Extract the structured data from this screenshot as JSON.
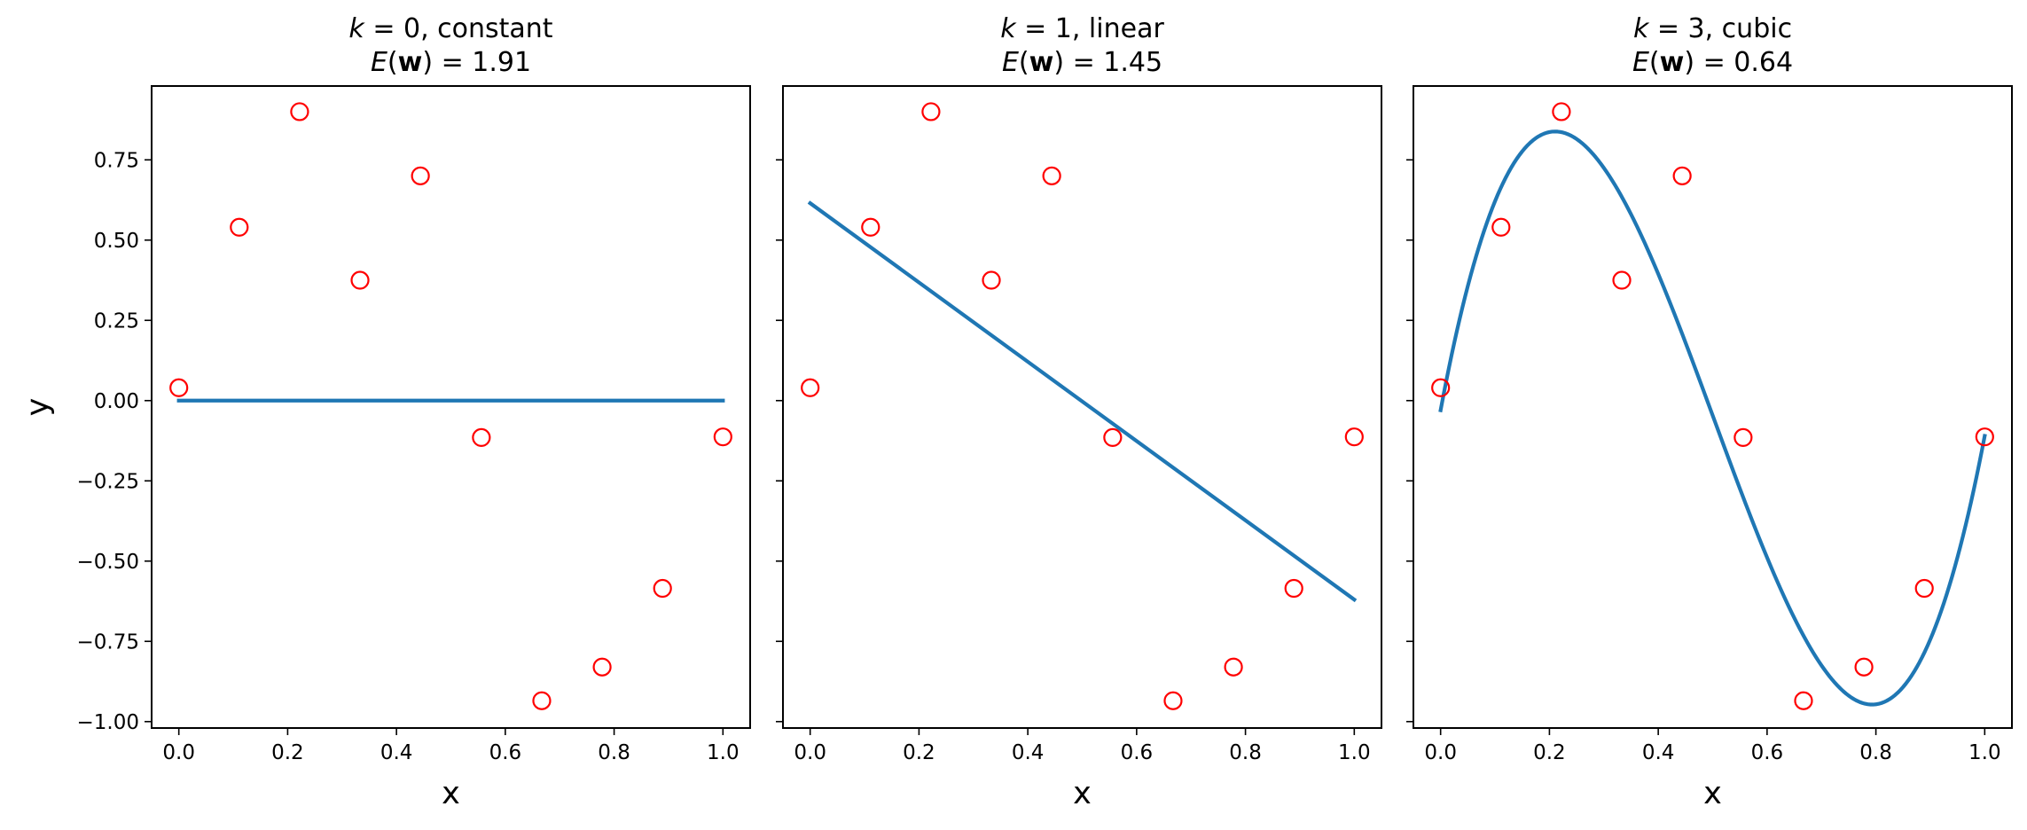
{
  "colors": {
    "fit": "#1f77b4",
    "points": "#ff0000"
  },
  "chart_data": [
    {
      "type": "scatter",
      "title_math": "k",
      "title_rest": " = 0, constant",
      "subtitle_math": "E",
      "subtitle_paren_open": "(",
      "subtitle_bold": "w",
      "subtitle_rest": ") = 1.91",
      "xlabel": "x",
      "ylabel": "y",
      "xlim": [
        -0.05,
        1.05
      ],
      "ylim": [
        -1.02,
        0.98
      ],
      "xticks": [
        "0.0",
        "0.2",
        "0.4",
        "0.6",
        "0.8",
        "1.0"
      ],
      "yticks": [
        "−1.00",
        "−0.75",
        "−0.50",
        "−0.25",
        "0.00",
        "0.25",
        "0.50",
        "0.75"
      ],
      "points": {
        "x": [
          0.0,
          0.111,
          0.222,
          0.333,
          0.444,
          0.556,
          0.667,
          0.778,
          0.889,
          1.0
        ],
        "y": [
          0.04,
          0.54,
          0.9,
          0.375,
          0.7,
          -0.115,
          -0.935,
          -0.83,
          -0.585,
          -0.113
        ]
      },
      "fit": {
        "degree": 0,
        "coefficients": [
          0.0
        ]
      }
    },
    {
      "type": "scatter",
      "title_math": "k",
      "title_rest": " = 1, linear",
      "subtitle_math": "E",
      "subtitle_paren_open": "(",
      "subtitle_bold": "w",
      "subtitle_rest": ") = 1.45",
      "xlabel": "x",
      "xlim": [
        -0.05,
        1.05
      ],
      "ylim": [
        -1.02,
        0.98
      ],
      "xticks": [
        "0.0",
        "0.2",
        "0.4",
        "0.6",
        "0.8",
        "1.0"
      ],
      "points": {
        "x": [
          0.0,
          0.111,
          0.222,
          0.333,
          0.444,
          0.556,
          0.667,
          0.778,
          0.889,
          1.0
        ],
        "y": [
          0.04,
          0.54,
          0.9,
          0.375,
          0.7,
          -0.115,
          -0.935,
          -0.83,
          -0.585,
          -0.113
        ]
      },
      "fit": {
        "degree": 1,
        "coefficients": [
          0.615,
          -1.235
        ]
      }
    },
    {
      "type": "scatter",
      "title_math": "k",
      "title_rest": " = 3, cubic",
      "subtitle_math": "E",
      "subtitle_paren_open": "(",
      "subtitle_bold": "w",
      "subtitle_rest": ") = 0.64",
      "xlabel": "x",
      "xlim": [
        -0.05,
        1.05
      ],
      "ylim": [
        -1.02,
        0.98
      ],
      "xticks": [
        "0.0",
        "0.2",
        "0.4",
        "0.6",
        "0.8",
        "1.0"
      ],
      "points": {
        "x": [
          0.0,
          0.111,
          0.222,
          0.333,
          0.444,
          0.556,
          0.667,
          0.778,
          0.889,
          1.0
        ],
        "y": [
          0.04,
          0.54,
          0.9,
          0.375,
          0.7,
          -0.115,
          -0.935,
          -0.83,
          -0.585,
          -0.113
        ]
      },
      "fit": {
        "degree": 3,
        "coefficients": [
          -0.03,
          9.05,
          -27.2,
          18.07
        ]
      }
    }
  ]
}
